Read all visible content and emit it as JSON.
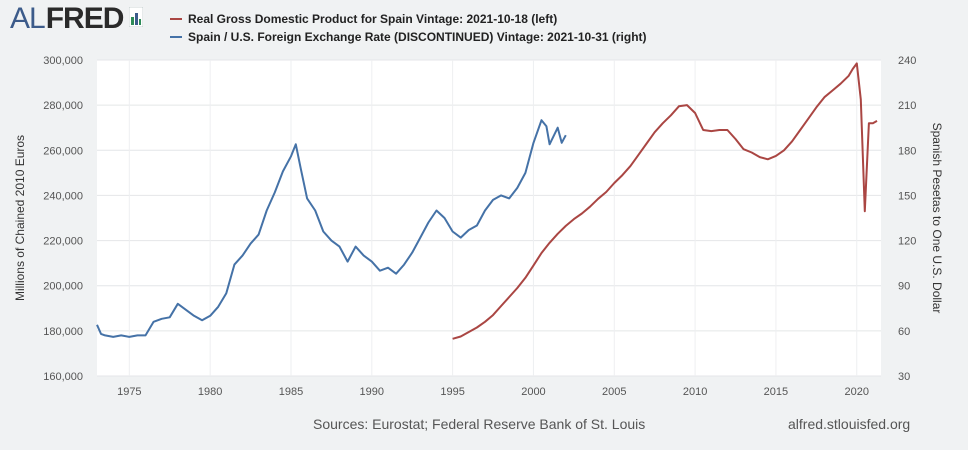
{
  "logo": {
    "part1": "AL",
    "part2": "FRED"
  },
  "legend": [
    {
      "label": "Real Gross Domestic Product for Spain Vintage: 2021-10-18 (left)",
      "color": "#aa4643"
    },
    {
      "label": "Spain / U.S. Foreign Exchange Rate (DISCONTINUED) Vintage: 2021-10-31 (right)",
      "color": "#4572a7"
    }
  ],
  "footer": {
    "sources": "Sources: Eurostat; Federal Reserve Bank of St. Louis",
    "url": "alfred.stlouisfed.org"
  },
  "chart_data": {
    "type": "line",
    "xlim": [
      1973,
      2021.5
    ],
    "x_ticks": [
      1975,
      1980,
      1985,
      1990,
      1995,
      2000,
      2005,
      2010,
      2015,
      2020
    ],
    "left_axis": {
      "title": "Millions of Chained 2010 Euros",
      "ylim": [
        160000,
        300000
      ],
      "ticks": [
        160000,
        180000,
        200000,
        220000,
        240000,
        260000,
        280000,
        300000
      ],
      "tick_labels": [
        "160,000",
        "180,000",
        "200,000",
        "220,000",
        "240,000",
        "260,000",
        "280,000",
        "300,000"
      ]
    },
    "right_axis": {
      "title": "Spanish Pesetas to One U.S. Dollar",
      "ylim": [
        30,
        240
      ],
      "ticks": [
        30,
        60,
        90,
        120,
        150,
        180,
        210,
        240
      ],
      "tick_labels": [
        "30",
        "60",
        "90",
        "120",
        "150",
        "180",
        "210",
        "240"
      ]
    },
    "grid": true,
    "series": [
      {
        "name": "Real Gross Domestic Product for Spain Vintage: 2021-10-18 (left)",
        "axis": "left",
        "color": "#aa4643",
        "x": [
          1995.0,
          1995.5,
          1996.0,
          1996.5,
          1997.0,
          1997.5,
          1998.0,
          1998.5,
          1999.0,
          1999.5,
          2000.0,
          2000.5,
          2001.0,
          2001.5,
          2002.0,
          2002.5,
          2003.0,
          2003.5,
          2004.0,
          2004.5,
          2005.0,
          2005.5,
          2006.0,
          2006.5,
          2007.0,
          2007.5,
          2008.0,
          2008.5,
          2009.0,
          2009.5,
          2010.0,
          2010.5,
          2011.0,
          2011.5,
          2012.0,
          2012.5,
          2013.0,
          2013.5,
          2014.0,
          2014.5,
          2015.0,
          2015.5,
          2016.0,
          2016.5,
          2017.0,
          2017.5,
          2018.0,
          2018.5,
          2019.0,
          2019.5,
          2019.75,
          2020.0,
          2020.25,
          2020.5,
          2020.75,
          2021.0,
          2021.25
        ],
        "y": [
          176500,
          177500,
          179500,
          181500,
          184000,
          187000,
          191000,
          195000,
          199000,
          203500,
          209000,
          214500,
          219000,
          223000,
          226500,
          229500,
          232000,
          235000,
          238500,
          241500,
          245500,
          249000,
          253000,
          258000,
          263000,
          268000,
          272000,
          275500,
          279500,
          280000,
          276500,
          269000,
          268500,
          269000,
          269000,
          265000,
          260500,
          259000,
          257000,
          256000,
          257500,
          260000,
          264000,
          269000,
          274000,
          279000,
          283500,
          286500,
          289500,
          293000,
          296000,
          298500,
          282500,
          233000,
          272000,
          272000,
          273000
        ]
      },
      {
        "name": "Spain / U.S. Foreign Exchange Rate (DISCONTINUED) Vintage: 2021-10-31 (right)",
        "axis": "right",
        "color": "#4572a7",
        "x": [
          1973.0,
          1973.25,
          1973.5,
          1974.0,
          1974.5,
          1975.0,
          1975.5,
          1976.0,
          1976.5,
          1977.0,
          1977.5,
          1978.0,
          1978.5,
          1979.0,
          1979.5,
          1980.0,
          1980.5,
          1981.0,
          1981.5,
          1982.0,
          1982.5,
          1983.0,
          1983.5,
          1984.0,
          1984.5,
          1985.0,
          1985.3,
          1985.6,
          1986.0,
          1986.5,
          1987.0,
          1987.5,
          1988.0,
          1988.5,
          1989.0,
          1989.5,
          1990.0,
          1990.5,
          1991.0,
          1991.5,
          1992.0,
          1992.5,
          1993.0,
          1993.5,
          1994.0,
          1994.5,
          1995.0,
          1995.5,
          1996.0,
          1996.5,
          1997.0,
          1997.5,
          1998.0,
          1998.5,
          1999.0,
          1999.5,
          2000.0,
          2000.5,
          2000.8,
          2001.0,
          2001.5,
          2001.75,
          2002.0
        ],
        "y": [
          64,
          58,
          57,
          56,
          57,
          56,
          57,
          57,
          66,
          68,
          69,
          78,
          74,
          70,
          67,
          70,
          76,
          85,
          104,
          110,
          118,
          124,
          140,
          152,
          166,
          176,
          184,
          168,
          148,
          140,
          126,
          120,
          116,
          106,
          116,
          110,
          106,
          100,
          102,
          98,
          104,
          112,
          122,
          132,
          140,
          135,
          126,
          122,
          127,
          130,
          140,
          147,
          150,
          148,
          155,
          165,
          185,
          200,
          196,
          184,
          195,
          185,
          190
        ]
      }
    ]
  }
}
